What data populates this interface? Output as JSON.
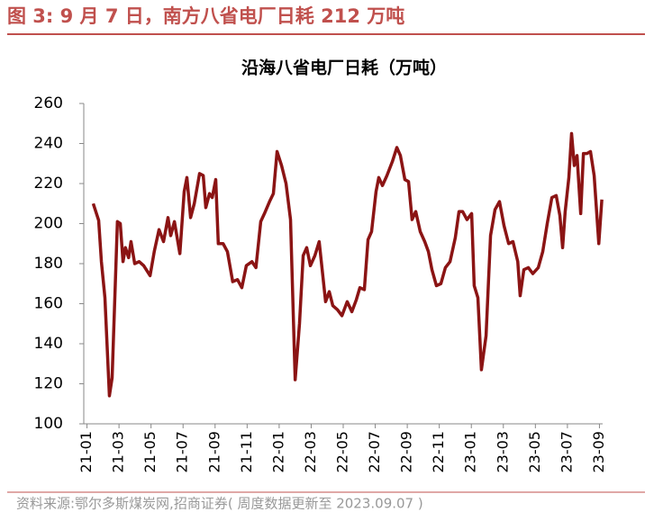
{
  "header": {
    "title": "图 3:  9 月 7 日，南方八省电厂日耗 212 万吨"
  },
  "chart_data": {
    "type": "line",
    "title": "沿海八省电厂日耗（万吨）",
    "x": [
      0.39,
      0.73,
      0.9,
      1.12,
      1.4,
      1.57,
      1.9,
      2.08,
      2.25,
      2.4,
      2.6,
      2.75,
      2.98,
      3.26,
      3.54,
      3.94,
      4.2,
      4.5,
      4.78,
      5.06,
      5.23,
      5.46,
      5.8,
      6.07,
      6.24,
      6.47,
      6.7,
      7.03,
      7.26,
      7.42,
      7.65,
      7.82,
      8.04,
      8.2,
      8.5,
      8.77,
      9.1,
      9.4,
      9.67,
      9.95,
      10.3,
      10.55,
      10.85,
      11.08,
      11.4,
      11.64,
      11.87,
      12.15,
      12.43,
      12.71,
      13,
      13.27,
      13.5,
      13.72,
      13.95,
      14.23,
      14.5,
      14.9,
      15.13,
      15.35,
      15.64,
      15.92,
      16.25,
      16.54,
      16.82,
      17.04,
      17.32,
      17.55,
      17.77,
      18.05,
      18.22,
      18.45,
      18.73,
      19.07,
      19.35,
      19.57,
      19.85,
      20.08,
      20.3,
      20.53,
      20.81,
      21.09,
      21.32,
      21.54,
      21.82,
      22.1,
      22.38,
      22.67,
      23,
      23.23,
      23.46,
      23.73,
      24.02,
      24.18,
      24.41,
      24.63,
      24.92,
      25.2,
      25.48,
      25.76,
      26.04,
      26.33,
      26.6,
      26.9,
      27.05,
      27.28,
      27.56,
      27.84,
      28.18,
      28.46,
      28.74,
      29.03,
      29.3,
      29.53,
      29.7,
      29.86,
      30.09,
      30.26,
      30.43,
      30.6,
      30.83,
      31,
      31.22,
      31.44,
      31.67,
      31.96,
      32.15
    ],
    "series": [
      {
        "name": "沿海八省电厂日耗",
        "color": "#8b1414",
        "values": [
          210,
          201.6,
          181,
          163,
          114,
          123,
          201,
          200,
          181,
          188,
          183,
          191,
          180,
          181,
          179,
          174,
          186,
          197,
          191,
          203,
          194,
          201,
          185,
          216,
          223,
          203,
          210,
          225,
          224,
          208,
          215,
          213,
          222,
          190,
          190,
          186,
          171,
          172,
          168,
          179,
          181,
          178,
          201,
          205,
          211,
          215,
          236,
          229,
          220,
          202,
          122,
          150,
          184,
          188,
          179,
          184,
          191,
          161,
          166,
          159,
          157,
          154,
          161,
          156,
          162,
          168,
          167,
          192,
          196,
          216,
          223,
          219,
          224,
          231,
          238,
          234,
          222,
          221,
          202,
          206,
          196,
          191,
          186,
          177,
          169,
          170,
          178,
          181,
          193,
          206,
          206,
          202,
          205,
          169,
          163,
          127,
          144,
          194,
          207,
          211,
          199,
          190,
          191,
          181,
          164,
          177,
          178,
          175,
          178,
          186,
          200,
          213,
          214,
          204,
          188,
          206,
          223,
          245,
          229,
          234,
          205,
          235,
          235,
          236,
          224,
          190,
          212
        ]
      }
    ],
    "xlim": [
      -0.2,
      32.2
    ],
    "xticks": [
      {
        "value": 0,
        "label": "21-01"
      },
      {
        "value": 2,
        "label": "21-03"
      },
      {
        "value": 4,
        "label": "21-05"
      },
      {
        "value": 6,
        "label": "21-07"
      },
      {
        "value": 8,
        "label": "21-09"
      },
      {
        "value": 10,
        "label": "21-11"
      },
      {
        "value": 12,
        "label": "22-01"
      },
      {
        "value": 14,
        "label": "22-03"
      },
      {
        "value": 16,
        "label": "22-05"
      },
      {
        "value": 18,
        "label": "22-07"
      },
      {
        "value": 20,
        "label": "22-09"
      },
      {
        "value": 22,
        "label": "22-11"
      },
      {
        "value": 24,
        "label": "23-01"
      },
      {
        "value": 26,
        "label": "23-03"
      },
      {
        "value": 28,
        "label": "23-05"
      },
      {
        "value": 30,
        "label": "23-07"
      },
      {
        "value": 32,
        "label": "23-09"
      }
    ],
    "ylim": [
      100,
      260
    ],
    "yticks": [
      100,
      120,
      140,
      160,
      180,
      200,
      220,
      240,
      260
    ],
    "grid": false
  },
  "source": "资料来源:鄂尔多斯煤炭网,招商证券( 周度数据更新至 2023.09.07 )"
}
